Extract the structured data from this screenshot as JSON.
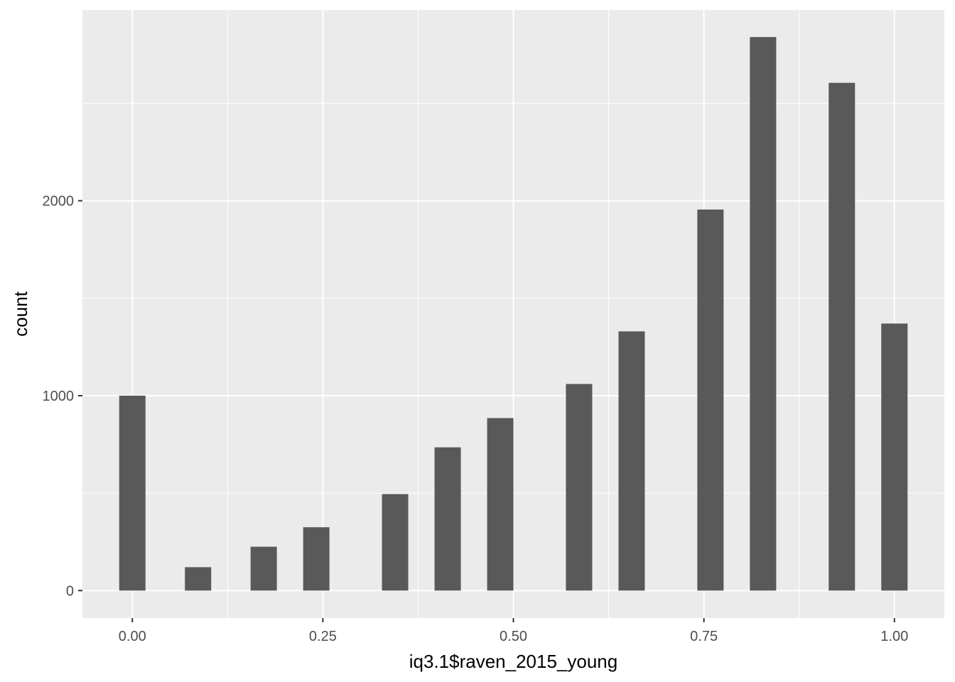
{
  "chart_data": {
    "type": "bar",
    "xlabel": "iq3.1$raven_2015_young",
    "ylabel": "count",
    "x_ticks": [
      "0.00",
      "0.25",
      "0.50",
      "0.75",
      "1.00"
    ],
    "x_tick_values": [
      0.0,
      0.25,
      0.5,
      0.75,
      1.0
    ],
    "y_ticks": [
      "0",
      "1000",
      "2000"
    ],
    "y_tick_values": [
      0,
      1000,
      2000
    ],
    "xlim": [
      -0.0655,
      1.0655
    ],
    "ylim": [
      -141,
      2979
    ],
    "grid": true,
    "bar_width": 0.0345,
    "x": [
      0.0,
      0.0345,
      0.0862,
      0.1207,
      0.1724,
      0.2069,
      0.2414,
      0.2759,
      0.3103,
      0.3448,
      0.3793,
      0.4138,
      0.4483,
      0.4828,
      0.5172,
      0.5517,
      0.5862,
      0.6207,
      0.6552,
      0.6897,
      0.7241,
      0.7586,
      0.7931,
      0.8276,
      0.8621,
      0.8966,
      0.931,
      0.9655,
      1.0
    ],
    "values": [
      1000,
      0,
      120,
      0,
      225,
      0,
      325,
      0,
      0,
      495,
      0,
      735,
      0,
      885,
      0,
      0,
      1060,
      0,
      1330,
      0,
      0,
      1955,
      0,
      2840,
      0,
      0,
      2605,
      0,
      1370
    ]
  },
  "colors": {
    "panel_bg": "#ebebeb",
    "grid": "#ffffff",
    "bar": "#595959",
    "tick": "#333333"
  }
}
